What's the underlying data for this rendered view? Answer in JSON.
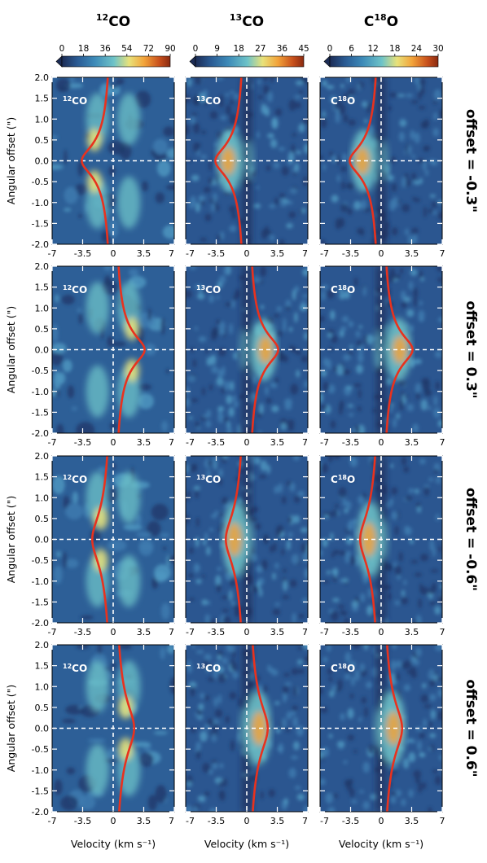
{
  "chart_data": {
    "type": "heatmap",
    "columns": [
      {
        "molecule_main": "CO",
        "molecule_sup": "12",
        "colorbar_ticks": [
          "0",
          "18",
          "36",
          "54",
          "72",
          "90"
        ],
        "vmax": 90
      },
      {
        "molecule_main": "CO",
        "molecule_sup": "13",
        "colorbar_ticks": [
          "0",
          "9",
          "18",
          "27",
          "36",
          "45"
        ],
        "vmax": 45
      },
      {
        "molecule_main": "O",
        "molecule_pre": "C",
        "molecule_sup": "18",
        "colorbar_ticks": [
          "0",
          "6",
          "12",
          "18",
          "24",
          "30"
        ],
        "vmax": 30
      }
    ],
    "rows": [
      {
        "label": "offset = -0.3\"",
        "curve_peak_velocity": -3.6,
        "curve_width": 0.35
      },
      {
        "label": "offset = 0.3\"",
        "curve_peak_velocity": 3.6,
        "curve_width": 0.35
      },
      {
        "label": "offset = -0.6\"",
        "curve_peak_velocity": -2.4,
        "curve_width": 0.6
      },
      {
        "label": "offset = 0.6\"",
        "curve_peak_velocity": 2.4,
        "curve_width": 0.6
      }
    ],
    "xlabel": "Velocity (km s⁻¹)",
    "ylabel": "Angular offset (\")",
    "xlim": [
      -7,
      7
    ],
    "ylim": [
      -2.0,
      2.0
    ],
    "xticks": [
      "-7",
      "-3.5",
      "0",
      "3.5",
      "7"
    ],
    "yticks": [
      "2.0",
      "1.5",
      "1.0",
      "0.5",
      "0.0",
      "-0.5",
      "-1.0",
      "-1.5",
      "-2.0"
    ],
    "reference_lines": {
      "velocity": 0,
      "offset": 0.0,
      "style": "dashed white"
    },
    "curve_color": "#e8321e",
    "colormap": [
      "#1c2c55",
      "#2a5a93",
      "#3d8ab8",
      "#6ec3c8",
      "#e8e27a",
      "#f2a33a",
      "#c8501c",
      "#8a2a10"
    ]
  }
}
